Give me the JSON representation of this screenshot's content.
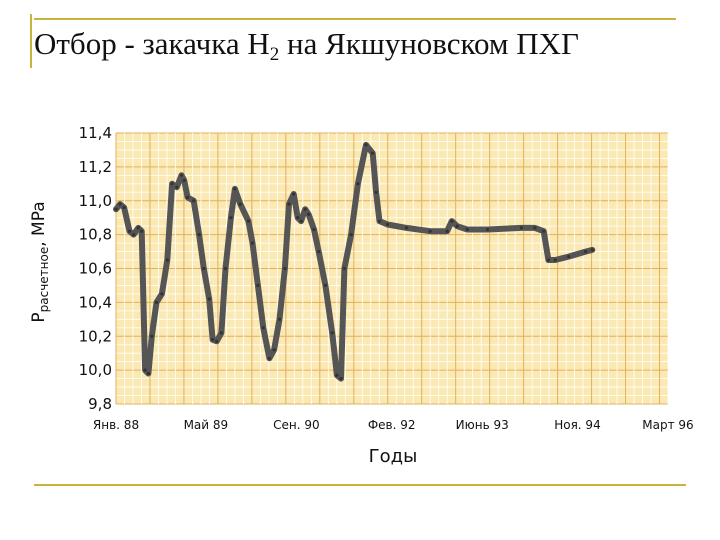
{
  "slide": {
    "title_main": "Отбор - закачка Н",
    "title_sub": "2",
    "title_rest": " на Якшуновском ПХГ"
  },
  "colors": {
    "plot_bg": "#fbe9b4",
    "grid_minor": "#ffffff",
    "grid_major": "#e0b060",
    "line": "#555555",
    "rule": "#c8b43a"
  },
  "chart_data": {
    "type": "line",
    "title": "Отбор - закачка Н2 на Якшуновском ПХГ",
    "xlabel": "Годы",
    "ylabel_main": "P",
    "ylabel_sub": "расчетное",
    "ylabel_unit": ", MPa",
    "ylim": [
      9.8,
      11.4
    ],
    "xlim": [
      1988.0,
      1996.17
    ],
    "grid": true,
    "legend": "none",
    "y_ticks": [
      {
        "value": 11.4,
        "label": "11,4"
      },
      {
        "value": 11.2,
        "label": "11,2"
      },
      {
        "value": 11.0,
        "label": "11,0"
      },
      {
        "value": 10.8,
        "label": "10,8"
      },
      {
        "value": 10.6,
        "label": "10,6"
      },
      {
        "value": 10.4,
        "label": "10,4"
      },
      {
        "value": 10.2,
        "label": "10,2"
      },
      {
        "value": 10.0,
        "label": "10,0"
      },
      {
        "value": 9.8,
        "label": "9,8"
      }
    ],
    "x_ticks": [
      {
        "value": 1988.0,
        "label": "Янв. 88"
      },
      {
        "value": 1989.33,
        "label": "Май 89"
      },
      {
        "value": 1990.67,
        "label": "Сен. 90"
      },
      {
        "value": 1992.08,
        "label": "Фев. 92"
      },
      {
        "value": 1993.42,
        "label": "Июнь 93"
      },
      {
        "value": 1994.83,
        "label": "Ноя. 94"
      },
      {
        "value": 1996.17,
        "label": "Март 96"
      }
    ],
    "series": [
      {
        "points": [
          [
            1988.0,
            10.95
          ],
          [
            1988.06,
            10.98
          ],
          [
            1988.12,
            10.96
          ],
          [
            1988.2,
            10.82
          ],
          [
            1988.26,
            10.8
          ],
          [
            1988.33,
            10.84
          ],
          [
            1988.38,
            10.82
          ],
          [
            1988.43,
            10.0
          ],
          [
            1988.48,
            9.98
          ],
          [
            1988.53,
            10.2
          ],
          [
            1988.6,
            10.4
          ],
          [
            1988.68,
            10.45
          ],
          [
            1988.76,
            10.65
          ],
          [
            1988.83,
            11.1
          ],
          [
            1988.9,
            11.08
          ],
          [
            1988.97,
            11.15
          ],
          [
            1989.01,
            11.12
          ],
          [
            1989.06,
            11.02
          ],
          [
            1989.15,
            11.0
          ],
          [
            1989.23,
            10.8
          ],
          [
            1989.3,
            10.6
          ],
          [
            1989.38,
            10.42
          ],
          [
            1989.43,
            10.18
          ],
          [
            1989.49,
            10.17
          ],
          [
            1989.56,
            10.22
          ],
          [
            1989.62,
            10.6
          ],
          [
            1989.7,
            10.9
          ],
          [
            1989.76,
            11.07
          ],
          [
            1989.84,
            10.98
          ],
          [
            1989.96,
            10.88
          ],
          [
            1990.02,
            10.75
          ],
          [
            1990.1,
            10.5
          ],
          [
            1990.18,
            10.25
          ],
          [
            1990.27,
            10.07
          ],
          [
            1990.34,
            10.12
          ],
          [
            1990.42,
            10.3
          ],
          [
            1990.5,
            10.6
          ],
          [
            1990.56,
            10.98
          ],
          [
            1990.63,
            11.04
          ],
          [
            1990.69,
            10.9
          ],
          [
            1990.74,
            10.88
          ],
          [
            1990.8,
            10.95
          ],
          [
            1990.85,
            10.92
          ],
          [
            1990.93,
            10.83
          ],
          [
            1991.0,
            10.7
          ],
          [
            1991.1,
            10.5
          ],
          [
            1991.2,
            10.22
          ],
          [
            1991.27,
            9.97
          ],
          [
            1991.33,
            9.95
          ],
          [
            1991.38,
            10.6
          ],
          [
            1991.48,
            10.8
          ],
          [
            1991.58,
            11.1
          ],
          [
            1991.7,
            11.33
          ],
          [
            1991.8,
            11.28
          ],
          [
            1991.85,
            11.05
          ],
          [
            1991.9,
            10.88
          ],
          [
            1992.02,
            10.86
          ],
          [
            1992.3,
            10.84
          ],
          [
            1992.65,
            10.82
          ],
          [
            1992.9,
            10.82
          ],
          [
            1992.97,
            10.88
          ],
          [
            1993.05,
            10.85
          ],
          [
            1993.2,
            10.83
          ],
          [
            1993.5,
            10.83
          ],
          [
            1994.0,
            10.84
          ],
          [
            1994.2,
            10.84
          ],
          [
            1994.33,
            10.82
          ],
          [
            1994.4,
            10.65
          ],
          [
            1994.5,
            10.65
          ],
          [
            1994.7,
            10.67
          ],
          [
            1994.95,
            10.7
          ],
          [
            1995.05,
            10.71
          ]
        ]
      }
    ]
  }
}
